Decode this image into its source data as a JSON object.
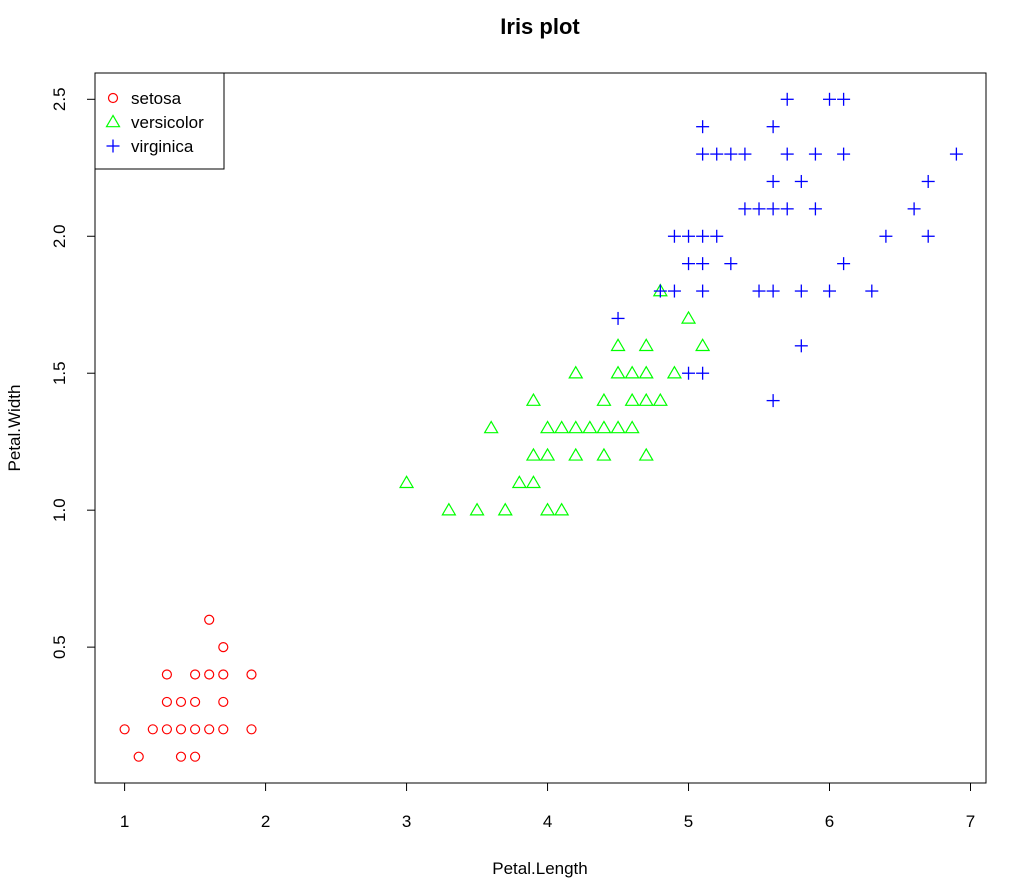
{
  "chart_data": {
    "type": "scatter",
    "title": "Iris plot",
    "xlabel": "Petal.Length",
    "ylabel": "Petal.Width",
    "xlim": [
      0.79,
      7.11
    ],
    "ylim": [
      0.004,
      2.596
    ],
    "x_ticks": [
      1,
      2,
      3,
      4,
      5,
      6,
      7
    ],
    "y_ticks": [
      0.5,
      1.0,
      1.5,
      2.0,
      2.5
    ],
    "x_tick_labels": [
      "1",
      "2",
      "3",
      "4",
      "5",
      "6",
      "7"
    ],
    "y_tick_labels": [
      "0.5",
      "1.0",
      "1.5",
      "2.0",
      "2.5"
    ],
    "grid": false,
    "legend_position": "top-left",
    "series": [
      {
        "name": "setosa",
        "marker": "circle",
        "color": "#ff0000",
        "points": [
          [
            1.0,
            0.2
          ],
          [
            1.1,
            0.1
          ],
          [
            1.2,
            0.2
          ],
          [
            1.3,
            0.2
          ],
          [
            1.3,
            0.3
          ],
          [
            1.3,
            0.4
          ],
          [
            1.4,
            0.1
          ],
          [
            1.4,
            0.2
          ],
          [
            1.4,
            0.3
          ],
          [
            1.5,
            0.1
          ],
          [
            1.5,
            0.2
          ],
          [
            1.5,
            0.3
          ],
          [
            1.5,
            0.4
          ],
          [
            1.6,
            0.2
          ],
          [
            1.6,
            0.4
          ],
          [
            1.6,
            0.6
          ],
          [
            1.7,
            0.2
          ],
          [
            1.7,
            0.3
          ],
          [
            1.7,
            0.4
          ],
          [
            1.7,
            0.5
          ],
          [
            1.9,
            0.2
          ],
          [
            1.9,
            0.4
          ]
        ]
      },
      {
        "name": "versicolor",
        "marker": "triangle",
        "color": "#00ff00",
        "points": [
          [
            3.0,
            1.1
          ],
          [
            3.3,
            1.0
          ],
          [
            3.5,
            1.0
          ],
          [
            3.6,
            1.3
          ],
          [
            3.7,
            1.0
          ],
          [
            3.8,
            1.1
          ],
          [
            3.9,
            1.1
          ],
          [
            3.9,
            1.2
          ],
          [
            3.9,
            1.4
          ],
          [
            4.0,
            1.0
          ],
          [
            4.0,
            1.2
          ],
          [
            4.0,
            1.3
          ],
          [
            4.1,
            1.0
          ],
          [
            4.1,
            1.3
          ],
          [
            4.2,
            1.2
          ],
          [
            4.2,
            1.3
          ],
          [
            4.2,
            1.5
          ],
          [
            4.3,
            1.3
          ],
          [
            4.4,
            1.2
          ],
          [
            4.4,
            1.3
          ],
          [
            4.4,
            1.4
          ],
          [
            4.5,
            1.3
          ],
          [
            4.5,
            1.5
          ],
          [
            4.5,
            1.6
          ],
          [
            4.6,
            1.3
          ],
          [
            4.6,
            1.4
          ],
          [
            4.6,
            1.5
          ],
          [
            4.7,
            1.2
          ],
          [
            4.7,
            1.4
          ],
          [
            4.7,
            1.5
          ],
          [
            4.7,
            1.6
          ],
          [
            4.8,
            1.4
          ],
          [
            4.8,
            1.8
          ],
          [
            4.9,
            1.5
          ],
          [
            5.0,
            1.7
          ],
          [
            5.1,
            1.6
          ]
        ]
      },
      {
        "name": "virginica",
        "marker": "plus",
        "color": "#0000ff",
        "points": [
          [
            4.5,
            1.7
          ],
          [
            4.8,
            1.8
          ],
          [
            4.9,
            1.8
          ],
          [
            4.9,
            2.0
          ],
          [
            5.0,
            1.5
          ],
          [
            5.0,
            1.9
          ],
          [
            5.0,
            2.0
          ],
          [
            5.1,
            1.5
          ],
          [
            5.1,
            1.8
          ],
          [
            5.1,
            1.9
          ],
          [
            5.1,
            2.0
          ],
          [
            5.1,
            2.3
          ],
          [
            5.1,
            2.4
          ],
          [
            5.2,
            2.0
          ],
          [
            5.2,
            2.3
          ],
          [
            5.3,
            1.9
          ],
          [
            5.3,
            2.3
          ],
          [
            5.4,
            2.1
          ],
          [
            5.4,
            2.3
          ],
          [
            5.5,
            1.8
          ],
          [
            5.5,
            2.1
          ],
          [
            5.6,
            1.4
          ],
          [
            5.6,
            1.8
          ],
          [
            5.6,
            2.1
          ],
          [
            5.6,
            2.2
          ],
          [
            5.6,
            2.4
          ],
          [
            5.7,
            2.1
          ],
          [
            5.7,
            2.3
          ],
          [
            5.7,
            2.5
          ],
          [
            5.8,
            1.6
          ],
          [
            5.8,
            1.8
          ],
          [
            5.8,
            2.2
          ],
          [
            5.9,
            2.1
          ],
          [
            5.9,
            2.3
          ],
          [
            6.0,
            1.8
          ],
          [
            6.0,
            2.5
          ],
          [
            6.1,
            1.9
          ],
          [
            6.1,
            2.3
          ],
          [
            6.1,
            2.5
          ],
          [
            6.3,
            1.8
          ],
          [
            6.4,
            2.0
          ],
          [
            6.6,
            2.1
          ],
          [
            6.7,
            2.0
          ],
          [
            6.7,
            2.2
          ],
          [
            6.9,
            2.3
          ]
        ]
      }
    ]
  }
}
